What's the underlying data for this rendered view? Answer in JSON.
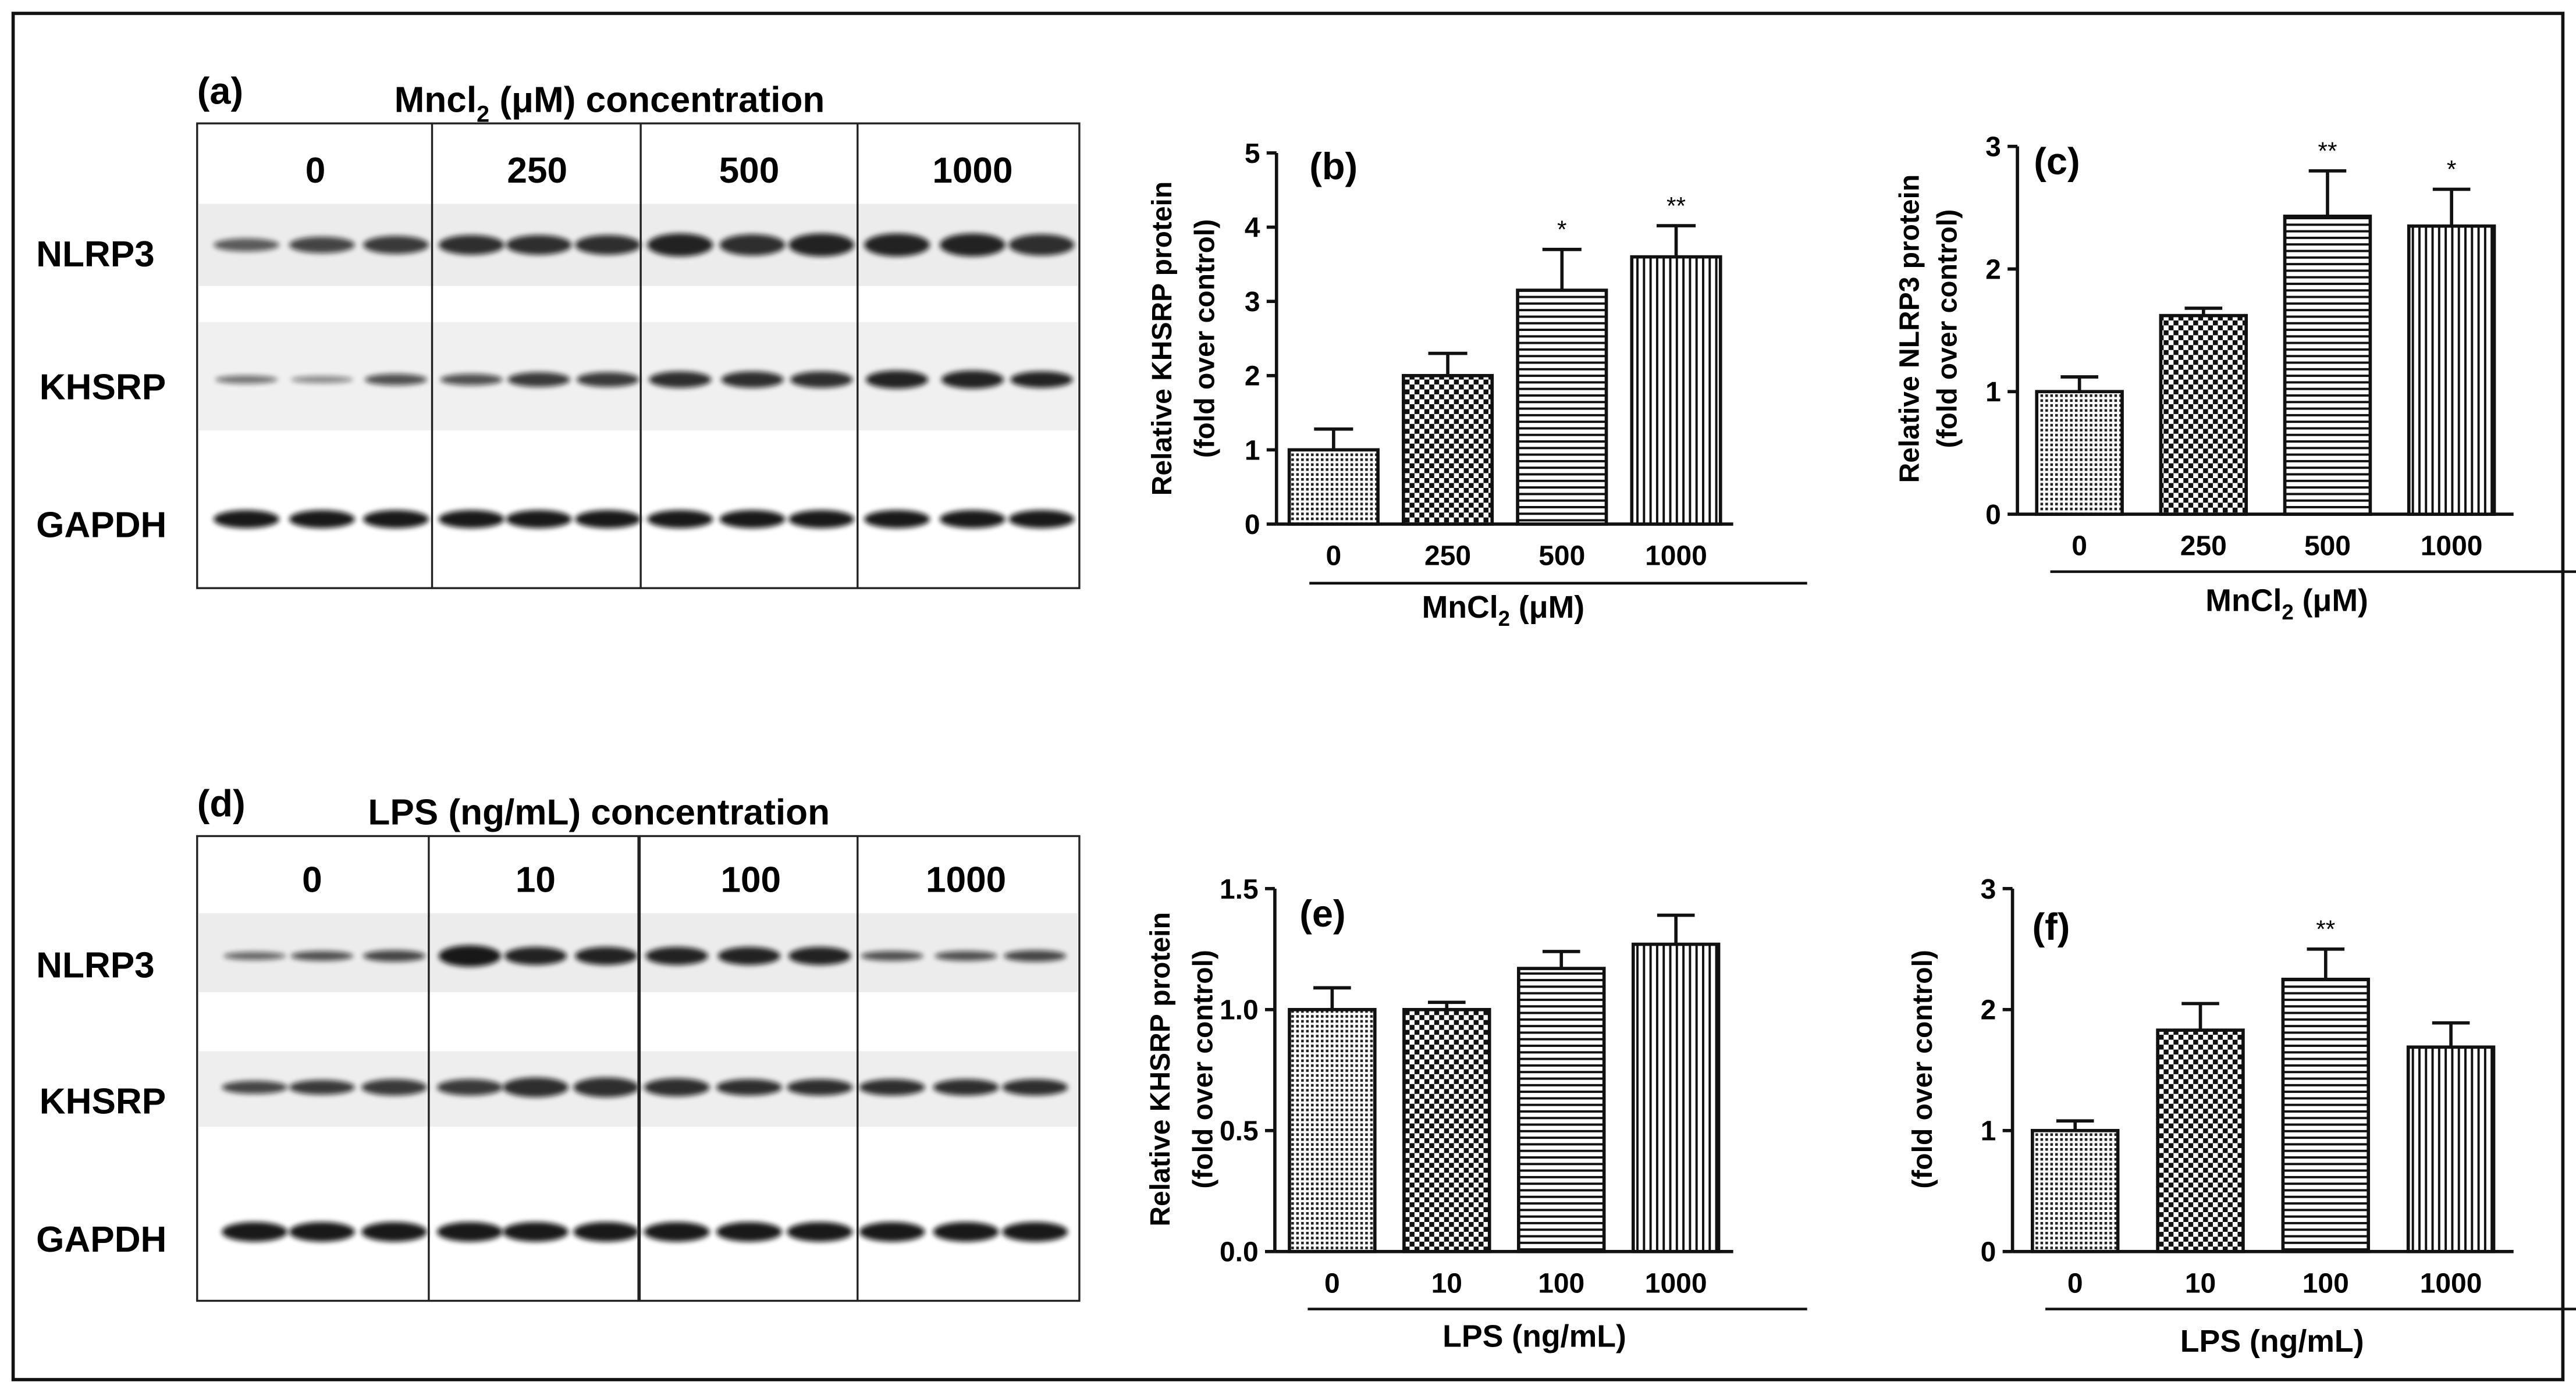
{
  "figure": {
    "blot_a": {
      "letter": "(a)",
      "title_prefix": "Mncl",
      "title_sub": "2",
      "title_suffix": " (μM)  concentration",
      "lanes": [
        "0",
        "250",
        "500",
        "1000"
      ],
      "rows": [
        "NLRP3",
        "KHSRP",
        "GAPDH"
      ]
    },
    "blot_d": {
      "letter": "(d)",
      "title": "LPS (ng/mL) concentration",
      "lanes": [
        "0",
        "10",
        "100",
        "1000"
      ],
      "rows": [
        "NLRP3",
        "KHSRP",
        "GAPDH"
      ]
    }
  },
  "chart_data": [
    {
      "id": "b",
      "letter": "(b)",
      "type": "bar",
      "categories": [
        "0",
        "250",
        "500",
        "1000"
      ],
      "values": [
        1.0,
        2.0,
        3.15,
        3.6
      ],
      "errors": [
        0.28,
        0.3,
        0.55,
        0.42
      ],
      "significance": [
        "",
        "",
        "*",
        "**"
      ],
      "patterns": [
        "dots",
        "checker",
        "hlines",
        "vlines"
      ],
      "ylim": [
        0,
        5
      ],
      "yticks": [
        0,
        1,
        2,
        3,
        4,
        5
      ],
      "tick_labels": [
        "0",
        "1",
        "2",
        "3",
        "4",
        "5"
      ],
      "ylabel_line1": "Relative KHSRP protein",
      "ylabel_line2": "(fold over control)",
      "xlabel_prefix": "MnCl",
      "xlabel_sub": "2",
      "xlabel_suffix": " (μM)"
    },
    {
      "id": "c",
      "letter": "(c)",
      "type": "bar",
      "categories": [
        "0",
        "250",
        "500",
        "1000"
      ],
      "values": [
        1.0,
        1.62,
        2.43,
        2.35
      ],
      "errors": [
        0.12,
        0.06,
        0.37,
        0.3
      ],
      "significance": [
        "",
        "",
        "**",
        "*"
      ],
      "patterns": [
        "dots",
        "checker",
        "hlines",
        "vlines"
      ],
      "ylim": [
        0,
        3
      ],
      "yticks": [
        0,
        1,
        2,
        3
      ],
      "tick_labels": [
        "0",
        "1",
        "2",
        "3"
      ],
      "ylabel_line1": "Relative NLRP3 protein",
      "ylabel_line2": "(fold over control)",
      "xlabel_prefix": "MnCl",
      "xlabel_sub": "2",
      "xlabel_suffix": " (μM)"
    },
    {
      "id": "e",
      "letter": "(e)",
      "type": "bar",
      "categories": [
        "0",
        "10",
        "100",
        "1000"
      ],
      "values": [
        1.0,
        1.0,
        1.17,
        1.27
      ],
      "errors": [
        0.09,
        0.03,
        0.07,
        0.12
      ],
      "significance": [
        "",
        "",
        "",
        ""
      ],
      "patterns": [
        "dots",
        "checker",
        "hlines",
        "vlines"
      ],
      "ylim": [
        0,
        1.5
      ],
      "yticks": [
        0,
        0.5,
        1.0,
        1.5
      ],
      "tick_labels": [
        "0.0",
        "0.5",
        "1.0",
        "1.5"
      ],
      "ylabel_line1": "Relative KHSRP protein",
      "ylabel_line2": "(fold over control)",
      "xlabel_prefix": "LPS (ng/mL)",
      "xlabel_sub": "",
      "xlabel_suffix": ""
    },
    {
      "id": "f",
      "letter": "(f)",
      "type": "bar",
      "categories": [
        "0",
        "10",
        "100",
        "1000"
      ],
      "values": [
        1.0,
        1.83,
        2.25,
        1.69
      ],
      "errors": [
        0.08,
        0.22,
        0.25,
        0.2
      ],
      "significance": [
        "",
        "",
        "**",
        ""
      ],
      "patterns": [
        "dots",
        "checker",
        "hlines",
        "vlines"
      ],
      "ylim": [
        0,
        3
      ],
      "yticks": [
        0,
        1,
        2,
        3
      ],
      "tick_labels": [
        "0",
        "1",
        "2",
        "3"
      ],
      "ylabel_line1": "",
      "ylabel_line2": "(fold over control)",
      "xlabel_prefix": "LPS (ng/mL)",
      "xlabel_sub": "",
      "xlabel_suffix": ""
    }
  ]
}
